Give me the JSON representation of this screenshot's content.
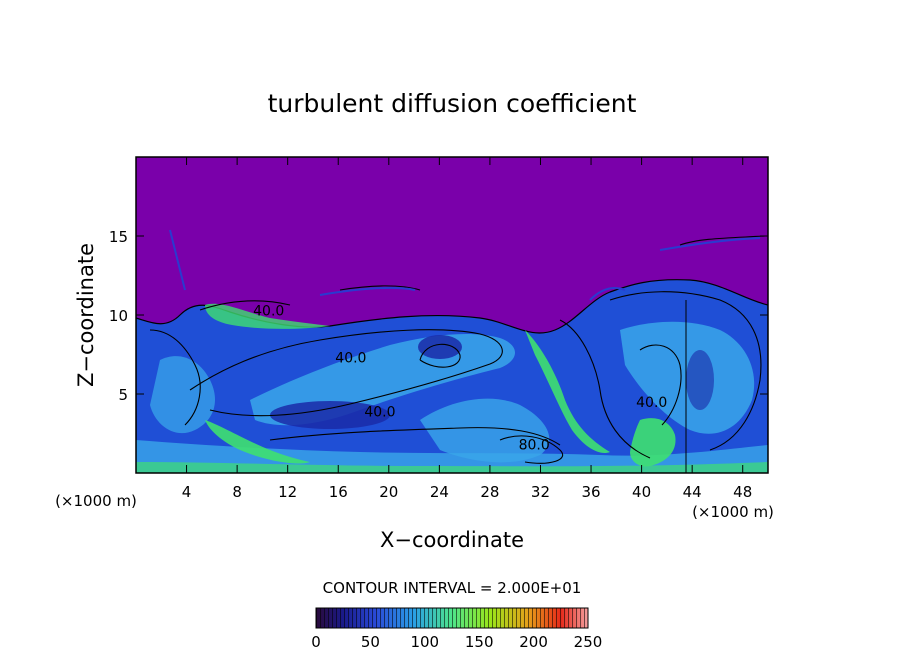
{
  "chart_data": {
    "type": "heatmap",
    "title": "turbulent diffusion coefficient",
    "xlabel": "X−coordinate",
    "ylabel": "Z−coordinate",
    "x_unit": "(×1000 m)",
    "xlim": [
      0,
      50
    ],
    "ylim": [
      0,
      20
    ],
    "x_ticks": [
      4,
      8,
      12,
      16,
      20,
      24,
      28,
      32,
      36,
      40,
      44,
      48
    ],
    "y_ticks": [
      5,
      10,
      15
    ],
    "contour_interval_text": "CONTOUR INTERVAL = 2.000E+01",
    "contour_labels": [
      {
        "text": "40.0",
        "x": 17.0,
        "y": 7.3
      },
      {
        "text": "40.0",
        "x": 19.3,
        "y": 3.9
      },
      {
        "text": "80.0",
        "x": 31.5,
        "y": 1.8
      },
      {
        "text": "40.0",
        "x": 10.5,
        "y": 10.3
      },
      {
        "text": "40.0",
        "x": 40.8,
        "y": 4.5
      }
    ],
    "colorbar": {
      "min": 0,
      "max": 250,
      "ticks": [
        0,
        50,
        100,
        150,
        200,
        250
      ],
      "colors": [
        "#1a1a8a",
        "#2a4ad8",
        "#2aa0e6",
        "#4ee68a",
        "#9ae61a",
        "#e6a01a",
        "#e62a1a",
        "#f4a0a0"
      ]
    },
    "colors": {
      "background_low": "#7a00aa",
      "field_blue": "#1f4fd6",
      "field_cyan": "#3aa6ea",
      "field_green": "#3ee070"
    }
  }
}
